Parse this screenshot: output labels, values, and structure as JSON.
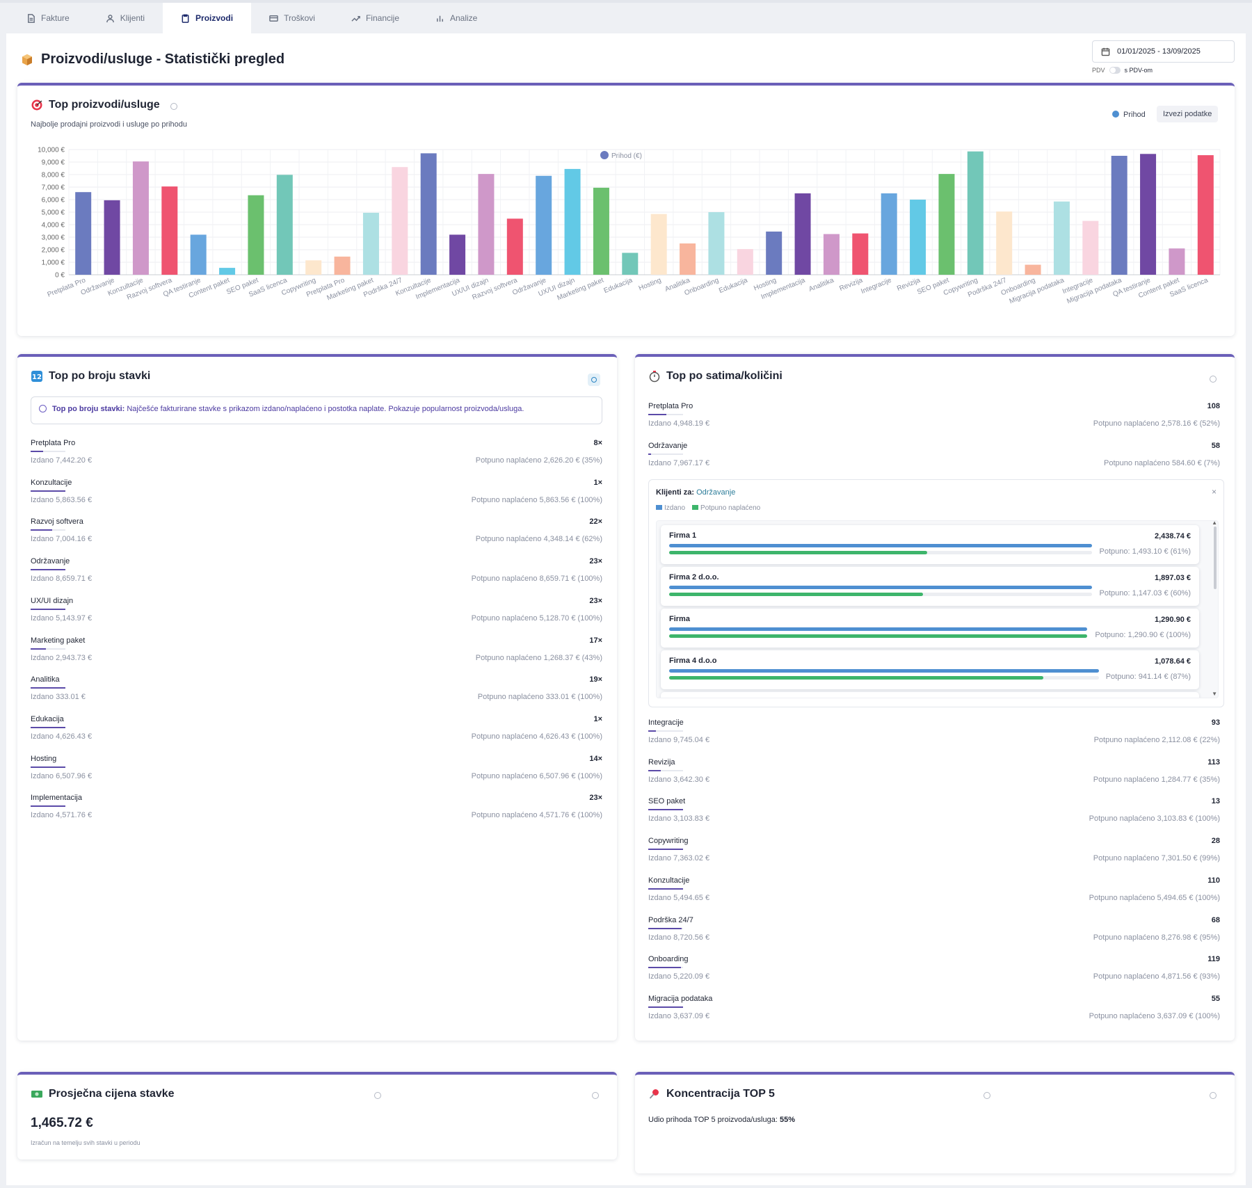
{
  "tabs": [
    {
      "label": "Fakture",
      "icon": "document-icon"
    },
    {
      "label": "Klijenti",
      "icon": "user-icon"
    },
    {
      "label": "Proizvodi",
      "icon": "clipboard-icon",
      "active": true
    },
    {
      "label": "Troškovi",
      "icon": "card-icon"
    },
    {
      "label": "Financije",
      "icon": "trend-icon"
    },
    {
      "label": "Analize",
      "icon": "bar-chart-icon"
    }
  ],
  "header": {
    "title": "Proizvodi/usluge - Statistički pregled",
    "date_range": "01/01/2025 - 13/09/2025",
    "pdv_label": "PDV",
    "pdv_on_label": "s PDV-om"
  },
  "top_card": {
    "title": "Top proizvodi/usluge",
    "subtitle": "Najbolje prodajni proizvodi i usluge po prihodu",
    "legend_label": "Prihod",
    "export_label": "Izvezi podatke"
  },
  "chart_data": {
    "type": "bar",
    "series_name": "Prihod (€)",
    "ylim": [
      0,
      10000
    ],
    "yticks": [
      "0 €",
      "1,000 €",
      "2,000 €",
      "3,000 €",
      "4,000 €",
      "5,000 €",
      "6,000 €",
      "7,000 €",
      "8,000 €",
      "9,000 €",
      "10,000 €"
    ],
    "grid": true,
    "legend_position": "top-center",
    "categories": [
      "Pretplata Pro",
      "Održavanje",
      "Konzultacije",
      "Razvoj softvera",
      "QA testiranje",
      "Content paket",
      "SEO paket",
      "SaaS licenca",
      "Copywriting",
      "Pretplata Pro",
      "Marketing paket",
      "Podrška 24/7",
      "Konzultacije",
      "Implementacija",
      "UX/UI dizajn",
      "Razvoj softvera",
      "Održavanje",
      "UX/UI dizajn",
      "Marketing paket",
      "Edukacija",
      "Hosting",
      "Analitika",
      "Onboarding",
      "Edukacija",
      "Hosting",
      "Implementacija",
      "Analitika",
      "Revizija",
      "Integracije",
      "Revizija",
      "SEO paket",
      "Copywriting",
      "Podrška 24/7",
      "Onboarding",
      "Migracija podataka",
      "Integracije",
      "Migracija podataka",
      "QA testiranje",
      "Content paket",
      "SaaS licenca"
    ],
    "values": [
      6600,
      5950,
      9050,
      7050,
      3200,
      550,
      6350,
      7980,
      1150,
      1450,
      4950,
      8600,
      9700,
      3200,
      8050,
      4480,
      7900,
      8450,
      6950,
      1750,
      4850,
      2500,
      5000,
      2050,
      3450,
      6500,
      3250,
      3300,
      6500,
      6000,
      8050,
      9850,
      5050,
      800,
      5850,
      4300,
      9500,
      9650,
      2100,
      9550
    ],
    "colors": [
      "#6b7bbf",
      "#7048a3",
      "#cf98c9",
      "#ef5470",
      "#68a6de",
      "#62c9e6",
      "#6bc06e",
      "#72c7b8",
      "#fde7cd",
      "#f8b59d",
      "#ade0e3",
      "#f9d5e0",
      "#6b7bbf",
      "#7048a3",
      "#cf98c9",
      "#ef5470",
      "#68a6de",
      "#62c9e6",
      "#6bc06e",
      "#72c7b8",
      "#fde7cd",
      "#f8b59d",
      "#ade0e3",
      "#f9d5e0",
      "#6b7bbf",
      "#7048a3",
      "#cf98c9",
      "#ef5470",
      "#68a6de",
      "#62c9e6",
      "#6bc06e",
      "#72c7b8",
      "#fde7cd",
      "#f8b59d",
      "#ade0e3",
      "#f9d5e0",
      "#6b7bbf",
      "#7048a3",
      "#cf98c9",
      "#ef5470"
    ]
  },
  "stavke_card": {
    "title": "Top po broju stavki",
    "note_bold": "Top po broju stavki:",
    "note_text": " Najčešće fakturirane stavke s prikazom izdano/naplaćeno i postotka naplate. Pokazuje popularnost proizvoda/usluga.",
    "items": [
      {
        "name": "Pretplata Pro",
        "count": "8×",
        "issued": "Izdano 7,442.20 €",
        "paid": "Potpuno naplaćeno 2,626.20 € (35%)",
        "paid_fraction": 0.35
      },
      {
        "name": "Konzultacije",
        "count": "1×",
        "issued": "Izdano 5,863.56 €",
        "paid": "Potpuno naplaćeno 5,863.56 € (100%)",
        "paid_fraction": 1.0
      },
      {
        "name": "Razvoj softvera",
        "count": "22×",
        "issued": "Izdano 7,004.16 €",
        "paid": "Potpuno naplaćeno 4,348.14 € (62%)",
        "paid_fraction": 0.62
      },
      {
        "name": "Održavanje",
        "count": "23×",
        "issued": "Izdano 8,659.71 €",
        "paid": "Potpuno naplaćeno 8,659.71 € (100%)",
        "paid_fraction": 1.0
      },
      {
        "name": "UX/UI dizajn",
        "count": "23×",
        "issued": "Izdano 5,143.97 €",
        "paid": "Potpuno naplaćeno 5,128.70 € (100%)",
        "paid_fraction": 1.0
      },
      {
        "name": "Marketing paket",
        "count": "17×",
        "issued": "Izdano 2,943.73 €",
        "paid": "Potpuno naplaćeno 1,268.37 € (43%)",
        "paid_fraction": 0.43
      },
      {
        "name": "Analitika",
        "count": "19×",
        "issued": "Izdano 333.01 €",
        "paid": "Potpuno naplaćeno 333.01 € (100%)",
        "paid_fraction": 1.0
      },
      {
        "name": "Edukacija",
        "count": "1×",
        "issued": "Izdano 4,626.43 €",
        "paid": "Potpuno naplaćeno 4,626.43 € (100%)",
        "paid_fraction": 1.0
      },
      {
        "name": "Hosting",
        "count": "14×",
        "issued": "Izdano 6,507.96 €",
        "paid": "Potpuno naplaćeno 6,507.96 € (100%)",
        "paid_fraction": 1.0
      },
      {
        "name": "Implementacija",
        "count": "23×",
        "issued": "Izdano 4,571.76 €",
        "paid": "Potpuno naplaćeno 4,571.76 € (100%)",
        "paid_fraction": 1.0
      }
    ]
  },
  "sati_card": {
    "title": "Top po satima/količini",
    "items_top": [
      {
        "name": "Pretplata Pro",
        "count": "108",
        "issued": "Izdano 4,948.19 €",
        "paid": "Potpuno naplaćeno 2,578.16 € (52%)",
        "paid_fraction": 0.52
      },
      {
        "name": "Održavanje",
        "count": "58",
        "issued": "Izdano 7,967.17 €",
        "paid": "Potpuno naplaćeno 584.60 € (7%)",
        "paid_fraction": 0.07
      }
    ],
    "clients_panel": {
      "title": "Klijenti za:",
      "product": "Održavanje",
      "legend_issued": "Izdano",
      "legend_paid": "Potpuno naplaćeno",
      "clients": [
        {
          "name": "Firma 1",
          "amount": "2,438.74 €",
          "paid": "Potpuno: 1,493.10 € (61%)",
          "issued_fraction": 1.0,
          "paid_fraction": 0.61
        },
        {
          "name": "Firma 2 d.o.o.",
          "amount": "1,897.03 €",
          "paid": "Potpuno: 1,147.03 € (60%)",
          "issued_fraction": 1.0,
          "paid_fraction": 0.6
        },
        {
          "name": "Firma",
          "amount": "1,290.90 €",
          "paid": "Potpuno: 1,290.90 € (100%)",
          "issued_fraction": 1.0,
          "paid_fraction": 1.0
        },
        {
          "name": "Firma 4 d.o.o",
          "amount": "1,078.64 €",
          "paid": "Potpuno: 941.14 € (87%)",
          "issued_fraction": 1.0,
          "paid_fraction": 0.87
        }
      ]
    },
    "items_bottom": [
      {
        "name": "Integracije",
        "count": "93",
        "issued": "Izdano 9,745.04 €",
        "paid": "Potpuno naplaćeno 2,112.08 € (22%)",
        "paid_fraction": 0.22
      },
      {
        "name": "Revizija",
        "count": "113",
        "issued": "Izdano 3,642.30 €",
        "paid": "Potpuno naplaćeno 1,284.77 € (35%)",
        "paid_fraction": 0.35
      },
      {
        "name": "SEO paket",
        "count": "13",
        "issued": "Izdano 3,103.83 €",
        "paid": "Potpuno naplaćeno 3,103.83 € (100%)",
        "paid_fraction": 1.0
      },
      {
        "name": "Copywriting",
        "count": "28",
        "issued": "Izdano 7,363.02 €",
        "paid": "Potpuno naplaćeno 7,301.50 € (99%)",
        "paid_fraction": 0.99
      },
      {
        "name": "Konzultacije",
        "count": "110",
        "issued": "Izdano 5,494.65 €",
        "paid": "Potpuno naplaćeno 5,494.65 € (100%)",
        "paid_fraction": 1.0
      },
      {
        "name": "Podrška 24/7",
        "count": "68",
        "issued": "Izdano 8,720.56 €",
        "paid": "Potpuno naplaćeno 8,276.98 € (95%)",
        "paid_fraction": 0.95
      },
      {
        "name": "Onboarding",
        "count": "119",
        "issued": "Izdano 5,220.09 €",
        "paid": "Potpuno naplaćeno 4,871.56 € (93%)",
        "paid_fraction": 0.93
      },
      {
        "name": "Migracija podataka",
        "count": "55",
        "issued": "Izdano 3,637.09 €",
        "paid": "Potpuno naplaćeno 3,637.09 € (100%)",
        "paid_fraction": 1.0
      }
    ]
  },
  "avg_card": {
    "title": "Prosječna cijena stavke",
    "value": "1,465.72 €",
    "note": "Izračun na temelju svih stavki u periodu"
  },
  "conc_card": {
    "title": "Koncentracija TOP 5",
    "text": "Udio prihoda TOP 5 proizvoda/usluga: ",
    "value": "55%"
  },
  "colors": {
    "accent": "#5b4aa8",
    "issued": "#4e8fd1",
    "paid": "#3db56b"
  }
}
